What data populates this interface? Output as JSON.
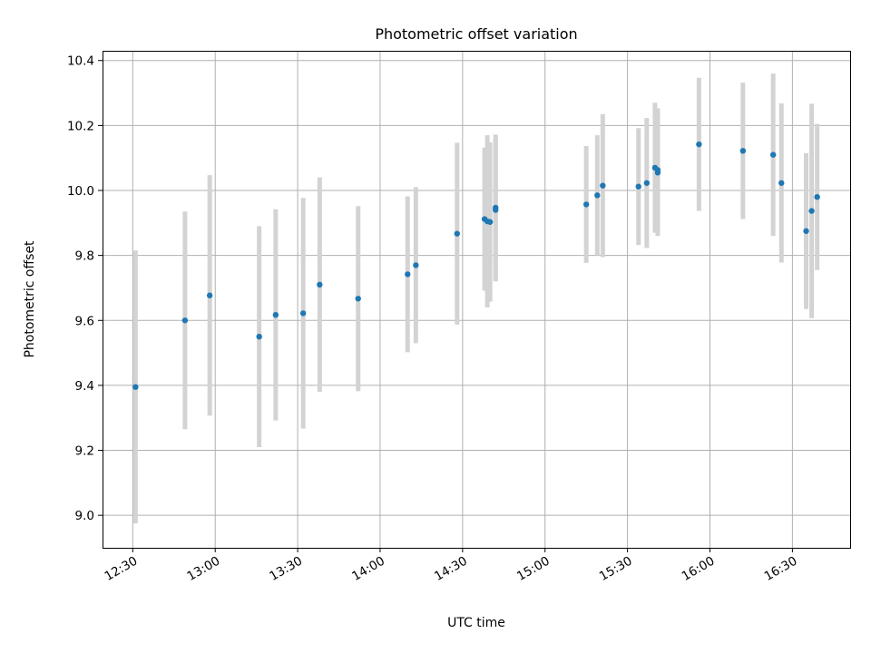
{
  "chart_data": {
    "type": "scatter",
    "title": "Photometric offset variation",
    "xlabel": "UTC time",
    "ylabel": "Photometric offset",
    "xlim": [
      "12:19",
      "16:51"
    ],
    "ylim": [
      8.9,
      10.43
    ],
    "x_ticks": [
      "12:30",
      "13:00",
      "13:30",
      "14:00",
      "14:30",
      "15:00",
      "15:30",
      "16:00",
      "16:30"
    ],
    "y_ticks": [
      9.0,
      9.2,
      9.4,
      9.6,
      9.8,
      10.0,
      10.2,
      10.4
    ],
    "y_tick_labels": [
      "9.0",
      "9.2",
      "9.4",
      "9.6",
      "9.8",
      "10.0",
      "10.2",
      "10.4"
    ],
    "grid": true,
    "colors": {
      "point": "#1f77b4",
      "errorbar": "#d3d3d3",
      "grid": "#b0b0b0"
    },
    "points": [
      {
        "t": "12:31",
        "y": 9.395,
        "err": 0.42
      },
      {
        "t": "12:49",
        "y": 9.6,
        "err": 0.335
      },
      {
        "t": "12:58",
        "y": 9.677,
        "err": 0.37
      },
      {
        "t": "13:16",
        "y": 9.55,
        "err": 0.34
      },
      {
        "t": "13:22",
        "y": 9.617,
        "err": 0.325
      },
      {
        "t": "13:32",
        "y": 9.622,
        "err": 0.355
      },
      {
        "t": "13:38",
        "y": 9.71,
        "err": 0.33
      },
      {
        "t": "13:52",
        "y": 9.667,
        "err": 0.285
      },
      {
        "t": "14:10",
        "y": 9.742,
        "err": 0.24
      },
      {
        "t": "14:13",
        "y": 9.77,
        "err": 0.24
      },
      {
        "t": "14:28",
        "y": 9.867,
        "err": 0.28
      },
      {
        "t": "14:38",
        "y": 9.912,
        "err": 0.22
      },
      {
        "t": "14:39",
        "y": 9.905,
        "err": 0.265
      },
      {
        "t": "14:40",
        "y": 9.903,
        "err": 0.245
      },
      {
        "t": "14:42",
        "y": 9.947,
        "err": 0.225
      },
      {
        "t": "14:42",
        "y": 9.94,
        "err": 0.22
      },
      {
        "t": "15:15",
        "y": 9.957,
        "err": 0.18
      },
      {
        "t": "15:19",
        "y": 9.985,
        "err": 0.185
      },
      {
        "t": "15:21",
        "y": 10.015,
        "err": 0.22
      },
      {
        "t": "15:34",
        "y": 10.012,
        "err": 0.18
      },
      {
        "t": "15:37",
        "y": 10.023,
        "err": 0.2
      },
      {
        "t": "15:40",
        "y": 10.07,
        "err": 0.2
      },
      {
        "t": "15:41",
        "y": 10.055,
        "err": 0.195
      },
      {
        "t": "15:41",
        "y": 10.063,
        "err": 0.19
      },
      {
        "t": "15:56",
        "y": 10.142,
        "err": 0.205
      },
      {
        "t": "16:12",
        "y": 10.122,
        "err": 0.21
      },
      {
        "t": "16:23",
        "y": 10.11,
        "err": 0.25
      },
      {
        "t": "16:26",
        "y": 10.023,
        "err": 0.245
      },
      {
        "t": "16:35",
        "y": 9.875,
        "err": 0.24
      },
      {
        "t": "16:37",
        "y": 9.937,
        "err": 0.33
      },
      {
        "t": "16:39",
        "y": 9.98,
        "err": 0.225
      }
    ]
  }
}
